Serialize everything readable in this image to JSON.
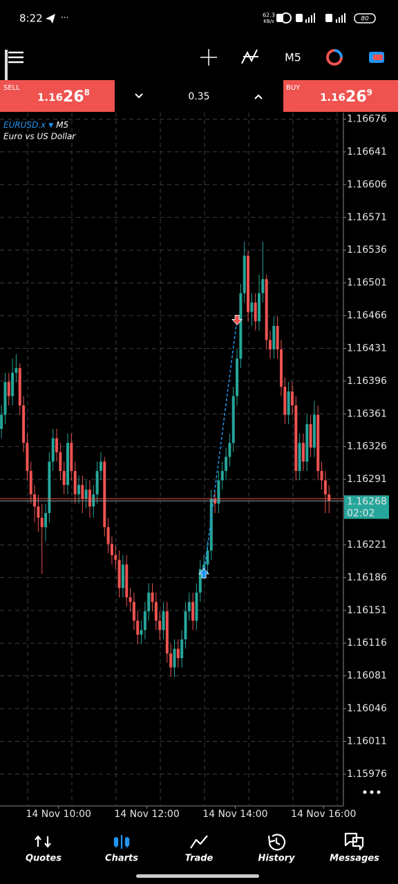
{
  "status_bar": {
    "time": "8:22",
    "net_speed": "62.3",
    "net_unit": "KB/s",
    "battery": "80"
  },
  "toolbar": {
    "timeframe": "M5"
  },
  "trade_bar": {
    "sell_label": "SELL",
    "sell_price": {
      "head": "1.16",
      "big": "26",
      "tail": "8"
    },
    "lot": "0.35",
    "buy_label": "BUY",
    "buy_price": {
      "head": "1.16",
      "big": "26",
      "tail": "9"
    }
  },
  "chart_data": {
    "type": "candlestick",
    "symbol": "EURUSD.x",
    "timeframe": "M5",
    "description": "Euro vs US Dollar",
    "up_color": "#26a69a",
    "down_color": "#ef5350",
    "grid": true,
    "ylim": [
      1.15942,
      1.16683
    ],
    "xlim": [
      -0.4,
      92.9
    ],
    "yticks": [
      1.16676,
      1.16641,
      1.16606,
      1.16571,
      1.16536,
      1.16501,
      1.16466,
      1.16431,
      1.16396,
      1.16361,
      1.16326,
      1.16291,
      1.16221,
      1.16186,
      1.16151,
      1.16116,
      1.16081,
      1.16046,
      1.16011,
      1.15976
    ],
    "xticks": [
      {
        "value": 15.5,
        "label": "14 Nov 10:00"
      },
      {
        "value": 39.5,
        "label": "14 Nov 12:00"
      },
      {
        "value": 63.5,
        "label": "14 Nov 14:00"
      },
      {
        "value": 87.5,
        "label": "14 Nov 16:00"
      }
    ],
    "bid": 1.16268,
    "ask": 1.16269,
    "countdown": "02:02",
    "bid_color": "#26a69a",
    "ask_color": "#ef5350",
    "trades": [
      {
        "side": "buy",
        "x": 55,
        "price": 1.1619,
        "color": "#2196f3"
      },
      {
        "side": "sell",
        "x": 64,
        "price": 1.16462,
        "color": "#ef5350"
      }
    ],
    "candles": [
      [
        1.16345,
        1.1637,
        1.16335,
        1.1636
      ],
      [
        1.1636,
        1.16405,
        1.1635,
        1.16395
      ],
      [
        1.16395,
        1.16405,
        1.1637,
        1.1638
      ],
      [
        1.1638,
        1.1642,
        1.1637,
        1.16405
      ],
      [
        1.16405,
        1.16425,
        1.16395,
        1.1641
      ],
      [
        1.1641,
        1.16415,
        1.1636,
        1.1637
      ],
      [
        1.1637,
        1.1638,
        1.1632,
        1.1633
      ],
      [
        1.1633,
        1.1634,
        1.1629,
        1.163
      ],
      [
        1.163,
        1.1631,
        1.16265,
        1.16275
      ],
      [
        1.16275,
        1.16285,
        1.16245,
        1.16262
      ],
      [
        1.16262,
        1.16275,
        1.16235,
        1.1625
      ],
      [
        1.1625,
        1.16265,
        1.1619,
        1.1624
      ],
      [
        1.1624,
        1.16265,
        1.16225,
        1.16255
      ],
      [
        1.16255,
        1.1632,
        1.16245,
        1.1631
      ],
      [
        1.1631,
        1.16345,
        1.163,
        1.16335
      ],
      [
        1.16335,
        1.16345,
        1.1631,
        1.1632
      ],
      [
        1.1632,
        1.1633,
        1.1629,
        1.163
      ],
      [
        1.163,
        1.1631,
        1.16275,
        1.16285
      ],
      [
        1.16285,
        1.1634,
        1.16275,
        1.1633
      ],
      [
        1.1633,
        1.1634,
        1.1629,
        1.163
      ],
      [
        1.163,
        1.1631,
        1.16265,
        1.16275
      ],
      [
        1.16275,
        1.16295,
        1.16265,
        1.16285
      ],
      [
        1.16285,
        1.16295,
        1.16255,
        1.1627
      ],
      [
        1.1627,
        1.1629,
        1.1626,
        1.1628
      ],
      [
        1.1628,
        1.1629,
        1.1625,
        1.16262
      ],
      [
        1.16262,
        1.16285,
        1.1625,
        1.16275
      ],
      [
        1.16275,
        1.1631,
        1.16265,
        1.163
      ],
      [
        1.163,
        1.1632,
        1.1629,
        1.1631
      ],
      [
        1.1631,
        1.16315,
        1.1623,
        1.1624
      ],
      [
        1.1624,
        1.1625,
        1.16212,
        1.16222
      ],
      [
        1.16222,
        1.1623,
        1.162,
        1.1621
      ],
      [
        1.1621,
        1.1622,
        1.16195,
        1.16205
      ],
      [
        1.16205,
        1.16215,
        1.16165,
        1.16175
      ],
      [
        1.16175,
        1.1621,
        1.16165,
        1.162
      ],
      [
        1.162,
        1.1621,
        1.16155,
        1.16165
      ],
      [
        1.16165,
        1.16175,
        1.1615,
        1.1616
      ],
      [
        1.1616,
        1.1617,
        1.1613,
        1.1614
      ],
      [
        1.1614,
        1.1615,
        1.16115,
        1.16125
      ],
      [
        1.16125,
        1.1614,
        1.16115,
        1.1613
      ],
      [
        1.1613,
        1.1616,
        1.1612,
        1.1615
      ],
      [
        1.1615,
        1.1618,
        1.1614,
        1.1617
      ],
      [
        1.1617,
        1.1618,
        1.1615,
        1.1616
      ],
      [
        1.1616,
        1.1617,
        1.1613,
        1.1614
      ],
      [
        1.1614,
        1.1615,
        1.1612,
        1.1613
      ],
      [
        1.1613,
        1.1616,
        1.1612,
        1.1615
      ],
      [
        1.1615,
        1.1616,
        1.16095,
        1.16105
      ],
      [
        1.16105,
        1.16115,
        1.1608,
        1.1609
      ],
      [
        1.1609,
        1.1612,
        1.1608,
        1.1611
      ],
      [
        1.1611,
        1.1612,
        1.1609,
        1.161
      ],
      [
        1.161,
        1.1613,
        1.1609,
        1.1612
      ],
      [
        1.1612,
        1.1616,
        1.1611,
        1.1615
      ],
      [
        1.1615,
        1.1617,
        1.1614,
        1.1616
      ],
      [
        1.1616,
        1.1617,
        1.1613,
        1.1614
      ],
      [
        1.1614,
        1.1618,
        1.1613,
        1.1617
      ],
      [
        1.1617,
        1.16205,
        1.1616,
        1.16195
      ],
      [
        1.16195,
        1.1621,
        1.16185,
        1.162
      ],
      [
        1.162,
        1.16225,
        1.1619,
        1.16215
      ],
      [
        1.16215,
        1.1628,
        1.16205,
        1.1627
      ],
      [
        1.1627,
        1.1628,
        1.16255,
        1.16265
      ],
      [
        1.16265,
        1.163,
        1.16255,
        1.1629
      ],
      [
        1.1629,
        1.1631,
        1.1628,
        1.163
      ],
      [
        1.163,
        1.16325,
        1.1629,
        1.16315
      ],
      [
        1.16315,
        1.1634,
        1.16305,
        1.1633
      ],
      [
        1.1633,
        1.1639,
        1.1632,
        1.1638
      ],
      [
        1.1638,
        1.1643,
        1.1637,
        1.1642
      ],
      [
        1.1642,
        1.165,
        1.1641,
        1.1649
      ],
      [
        1.1649,
        1.16545,
        1.1648,
        1.1653
      ],
      [
        1.1653,
        1.16535,
        1.1646,
        1.1647
      ],
      [
        1.1647,
        1.1649,
        1.16455,
        1.1648
      ],
      [
        1.1648,
        1.1649,
        1.1645,
        1.1646
      ],
      [
        1.1646,
        1.1651,
        1.1645,
        1.1649
      ],
      [
        1.1649,
        1.16545,
        1.1648,
        1.16505
      ],
      [
        1.16505,
        1.1651,
        1.1643,
        1.1644
      ],
      [
        1.1644,
        1.1645,
        1.1642,
        1.1643
      ],
      [
        1.1643,
        1.16465,
        1.1642,
        1.16455
      ],
      [
        1.16455,
        1.16465,
        1.1642,
        1.1643
      ],
      [
        1.1643,
        1.1644,
        1.1638,
        1.1639
      ],
      [
        1.1639,
        1.164,
        1.1635,
        1.1636
      ],
      [
        1.1636,
        1.16395,
        1.1635,
        1.16385
      ],
      [
        1.16385,
        1.16395,
        1.1636,
        1.1637
      ],
      [
        1.1637,
        1.1638,
        1.1629,
        1.163
      ],
      [
        1.163,
        1.1634,
        1.1629,
        1.1633
      ],
      [
        1.1633,
        1.1634,
        1.163,
        1.1631
      ],
      [
        1.1631,
        1.1636,
        1.163,
        1.1635
      ],
      [
        1.1635,
        1.1636,
        1.16315,
        1.16325
      ],
      [
        1.16325,
        1.16375,
        1.16315,
        1.1636
      ],
      [
        1.1636,
        1.1637,
        1.1629,
        1.163
      ],
      [
        1.163,
        1.1631,
        1.1628,
        1.1629
      ],
      [
        1.1629,
        1.163,
        1.16255,
        1.16275
      ],
      [
        1.16275,
        1.16285,
        1.16255,
        1.16268
      ]
    ]
  },
  "nav": {
    "items": [
      "Quotes",
      "Charts",
      "Trade",
      "History",
      "Messages"
    ],
    "active": 1
  }
}
